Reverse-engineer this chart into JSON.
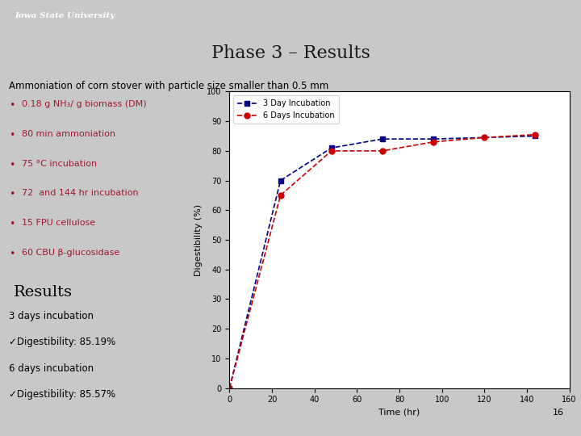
{
  "title": "Phase 3 – Results",
  "subtitle": "Ammoniation of corn stover with particle size smaller than 0.5 mm",
  "bullets": [
    "0.18 g NH₃/ g biomass (DM)",
    "80 min ammoniation",
    "75 °C incubation",
    "72  and 144 hr incubation",
    "15 FPU cellulose",
    "60 CBU β-glucosidase"
  ],
  "results_header": "Results",
  "results_3day_header": "3 days incubation",
  "results_3day_check": "✓Digestibility: 85.19%",
  "results_6day_header": "6 days incubation",
  "results_6day_check": "✓Digestibility: 85.57%",
  "page_number": "16",
  "header_bg": "#9B1B30",
  "header_text": "Iowa State University",
  "slide_bg": "#C8C8C8",
  "title_bg": "#C0C0C0",
  "footer_bg": "#9B1B30",
  "title_color": "#1a1a1a",
  "bullet_color": "#9B1B30",
  "text_color": "#000000",
  "series_3day": {
    "label": "3 Day Incubation",
    "color": "#00008B",
    "marker": "s",
    "x": [
      0,
      24,
      48,
      72,
      96,
      144
    ],
    "y": [
      0,
      70,
      81,
      84,
      84,
      85
    ]
  },
  "series_6day": {
    "label": "6 Days Incubation",
    "color": "#CC0000",
    "marker": "o",
    "x": [
      0,
      24,
      48,
      72,
      96,
      120,
      144
    ],
    "y": [
      0,
      65,
      80,
      80,
      83,
      84.5,
      85.5
    ]
  },
  "xlim": [
    0,
    160
  ],
  "ylim": [
    0,
    100
  ],
  "xticks": [
    0,
    20,
    40,
    60,
    80,
    100,
    120,
    140,
    160
  ],
  "yticks": [
    0,
    10,
    20,
    30,
    40,
    50,
    60,
    70,
    80,
    90,
    100
  ],
  "xlabel": "Time (hr)",
  "ylabel": "Digestibility (%)"
}
